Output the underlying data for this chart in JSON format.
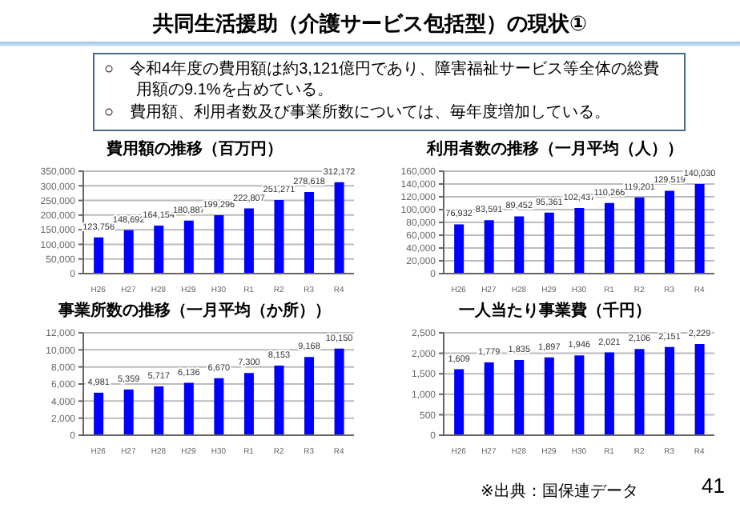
{
  "chart_data": [
    {
      "type": "other",
      "title": "共同生活援助（介護サービス包括型）の現状①",
      "annotations": [
        "○　令和4年度の費用額は約3,121億円であり、障害福祉サービス等全体の総費用額の9.1%を占めている。",
        "○　費用額、利用者数及び事業所数については、毎年度増加している。"
      ]
    },
    {
      "type": "bar",
      "title": "費用額の推移（百万円）",
      "categories": [
        "H26",
        "H27",
        "H28",
        "H29",
        "H30",
        "R1",
        "R2",
        "R3",
        "R4"
      ],
      "values": [
        123756,
        148692,
        164154,
        180887,
        199296,
        222807,
        251271,
        278618,
        312172
      ],
      "value_labels": [
        "123,756",
        "148,692",
        "164,154",
        "180,887",
        "199,296",
        "222,807",
        "251,271",
        "278,618",
        "312,172"
      ],
      "color": "#0000ff",
      "ylim": [
        0,
        350000
      ],
      "yticks": [
        {
          "value": 0,
          "label": "0"
        },
        {
          "value": 50000,
          "label": "50,000"
        },
        {
          "value": 100000,
          "label": "100,000"
        },
        {
          "value": 150000,
          "label": "150,000"
        },
        {
          "value": 200000,
          "label": "200,000"
        },
        {
          "value": 250000,
          "label": "250,000"
        },
        {
          "value": 300000,
          "label": "300,000"
        },
        {
          "value": 350000,
          "label": "350,000"
        }
      ],
      "grid": "y"
    },
    {
      "type": "bar",
      "title": "利用者数の推移（一月平均（人））",
      "categories": [
        "H26",
        "H27",
        "H28",
        "H29",
        "H30",
        "R1",
        "R2",
        "R3",
        "R4"
      ],
      "values": [
        76932,
        83591,
        89452,
        95361,
        102437,
        110266,
        119201,
        129519,
        140030
      ],
      "value_labels": [
        "76,932",
        "83,591",
        "89,452",
        "95,361",
        "102,437",
        "110,266",
        "119,201",
        "129,519",
        "140,030"
      ],
      "color": "#0000ff",
      "ylim": [
        0,
        160000
      ],
      "yticks": [
        {
          "value": 0,
          "label": "0"
        },
        {
          "value": 20000,
          "label": "20,000"
        },
        {
          "value": 40000,
          "label": "40,000"
        },
        {
          "value": 60000,
          "label": "60,000"
        },
        {
          "value": 80000,
          "label": "80,000"
        },
        {
          "value": 100000,
          "label": "100,000"
        },
        {
          "value": 120000,
          "label": "120,000"
        },
        {
          "value": 140000,
          "label": "140,000"
        },
        {
          "value": 160000,
          "label": "160,000"
        }
      ],
      "grid": "y"
    },
    {
      "type": "bar",
      "title": "事業所数の推移（一月平均（か所））",
      "categories": [
        "H26",
        "H27",
        "H28",
        "H29",
        "H30",
        "R1",
        "R2",
        "R3",
        "R4"
      ],
      "values": [
        4981,
        5359,
        5717,
        6136,
        6670,
        7300,
        8153,
        9168,
        10150
      ],
      "value_labels": [
        "4,981",
        "5,359",
        "5,717",
        "6,136",
        "6,670",
        "7,300",
        "8,153",
        "9,168",
        "10,150"
      ],
      "color": "#0000ff",
      "ylim": [
        0,
        12000
      ],
      "yticks": [
        {
          "value": 0,
          "label": "0"
        },
        {
          "value": 2000,
          "label": "2,000"
        },
        {
          "value": 4000,
          "label": "4,000"
        },
        {
          "value": 6000,
          "label": "6,000"
        },
        {
          "value": 8000,
          "label": "8,000"
        },
        {
          "value": 10000,
          "label": "10,000"
        },
        {
          "value": 12000,
          "label": "12,000"
        }
      ],
      "grid": "y"
    },
    {
      "type": "bar",
      "title": "一人当たり事業費（千円）",
      "categories": [
        "H26",
        "H27",
        "H28",
        "H29",
        "H30",
        "R1",
        "R2",
        "R3",
        "R4"
      ],
      "values": [
        1609,
        1779,
        1835,
        1897,
        1946,
        2021,
        2106,
        2151,
        2229
      ],
      "value_labels": [
        "1,609",
        "1,779",
        "1,835",
        "1,897",
        "1,946",
        "2,021",
        "2,106",
        "2,151",
        "2,229"
      ],
      "color": "#0000ff",
      "ylim": [
        0,
        2500
      ],
      "yticks": [
        {
          "value": 0,
          "label": "0"
        },
        500,
        {
          "value": 1000,
          "label": "1,000"
        },
        {
          "value": 1500,
          "label": "1,500"
        },
        {
          "value": 2000,
          "label": "2,000"
        },
        {
          "value": 2500,
          "label": "2,500"
        }
      ],
      "grid": "y",
      "annotations": [
        "※出典：国保連データ",
        "41"
      ]
    }
  ]
}
